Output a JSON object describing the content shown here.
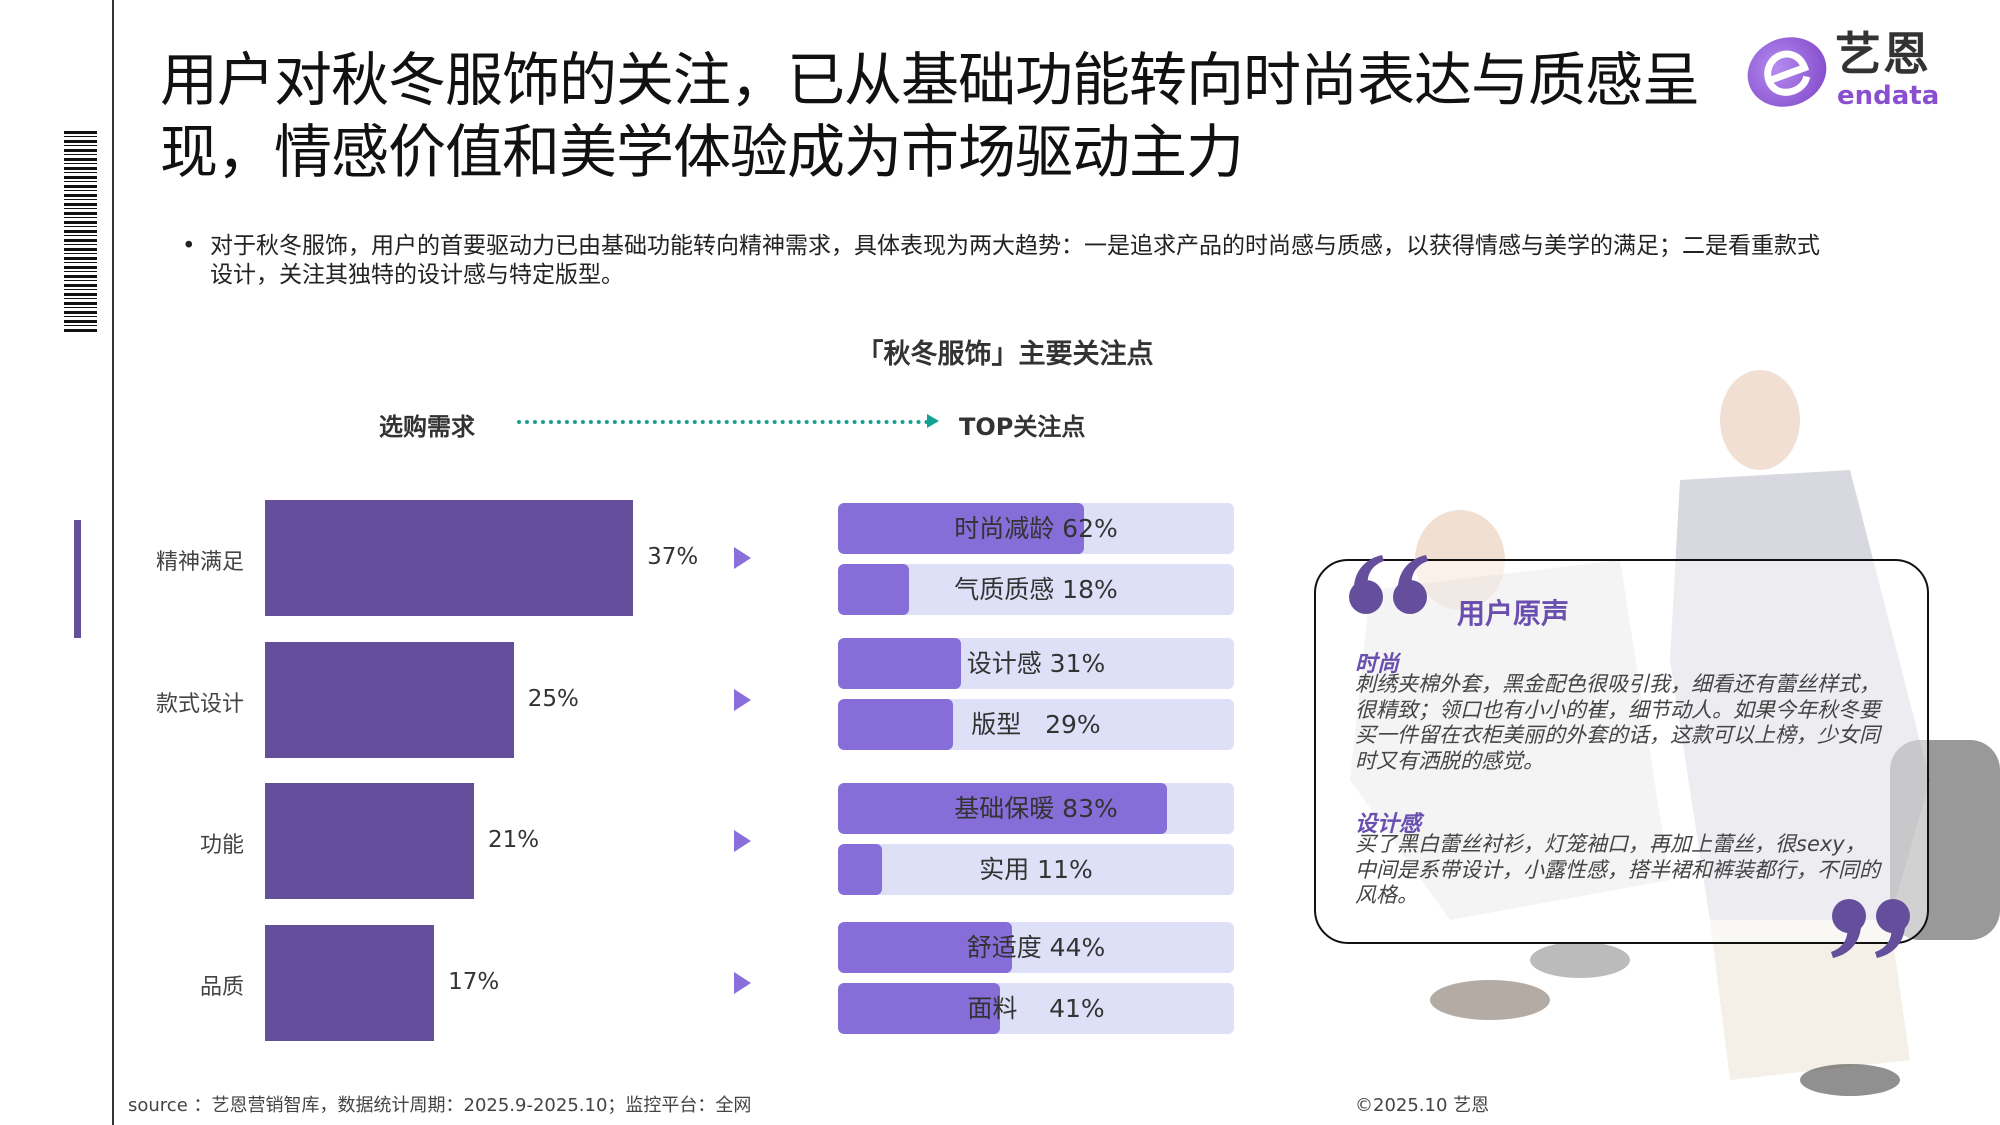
{
  "title": "用户对秋冬服饰的关注，已从基础功能转向时尚表达与质感呈现，情感价值和美学体验成为市场驱动主力",
  "logo": {
    "cn": "艺恩",
    "en": "endata"
  },
  "bullet": "对于秋冬服饰，用户的首要驱动力已由基础功能转向精神需求，具体表现为两大趋势：一是追求产品的时尚感与质感，以获得情感与美学的满足；二是看重款式设计，关注其独特的设计感与特定版型。",
  "colors": {
    "main_bar": "#654f9c",
    "sub_fill": "#866dd8",
    "sub_bg": "#dde0f7",
    "arrow": "#16a094"
  },
  "chart_data": {
    "type": "bar",
    "title": "「秋冬服饰」主要关注点",
    "left_header": "选购需求",
    "right_header": "TOP关注点",
    "categories": [
      "精神满足",
      "款式设计",
      "功能",
      "品质"
    ],
    "values": [
      37,
      25,
      21,
      17
    ],
    "value_labels": [
      "37%",
      "25%",
      "21%",
      "17%"
    ],
    "sub_items": [
      [
        {
          "label": "时尚减龄 62%",
          "value": 62
        },
        {
          "label": "气质质感 18%",
          "value": 18
        }
      ],
      [
        {
          "label": "设计感 31%",
          "value": 31
        },
        {
          "label": "版型   29%",
          "value": 29
        }
      ],
      [
        {
          "label": "基础保暖 83%",
          "value": 83
        },
        {
          "label": "实用 11%",
          "value": 11
        }
      ],
      [
        {
          "label": "舒适度 44%",
          "value": 44
        },
        {
          "label": "面料    41%",
          "value": 41
        }
      ]
    ]
  },
  "quotes": {
    "heading": "用户原声",
    "items": [
      {
        "tag": "时尚",
        "text": "刺绣夹棉外套，黑金配色很吸引我，细看还有蕾丝样式，很精致；领口也有小小的崔，细节动人。如果今年秋冬要买一件留在衣柜美丽的外套的话，这款可以上榜，少女同时又有洒脱的感觉。"
      },
      {
        "tag": "设计感",
        "text": "买了黑白蕾丝衬衫，灯笼袖口，再加上蕾丝，很sexy，中间是系带设计，小露性感，搭半裙和裤装都行，不同的风格。"
      }
    ]
  },
  "footer": {
    "source": "source ：艺恩营销智库，数据统计周期：2025.9-2025.10；监控平台：全网",
    "copyright": "©2025.10  艺恩"
  }
}
